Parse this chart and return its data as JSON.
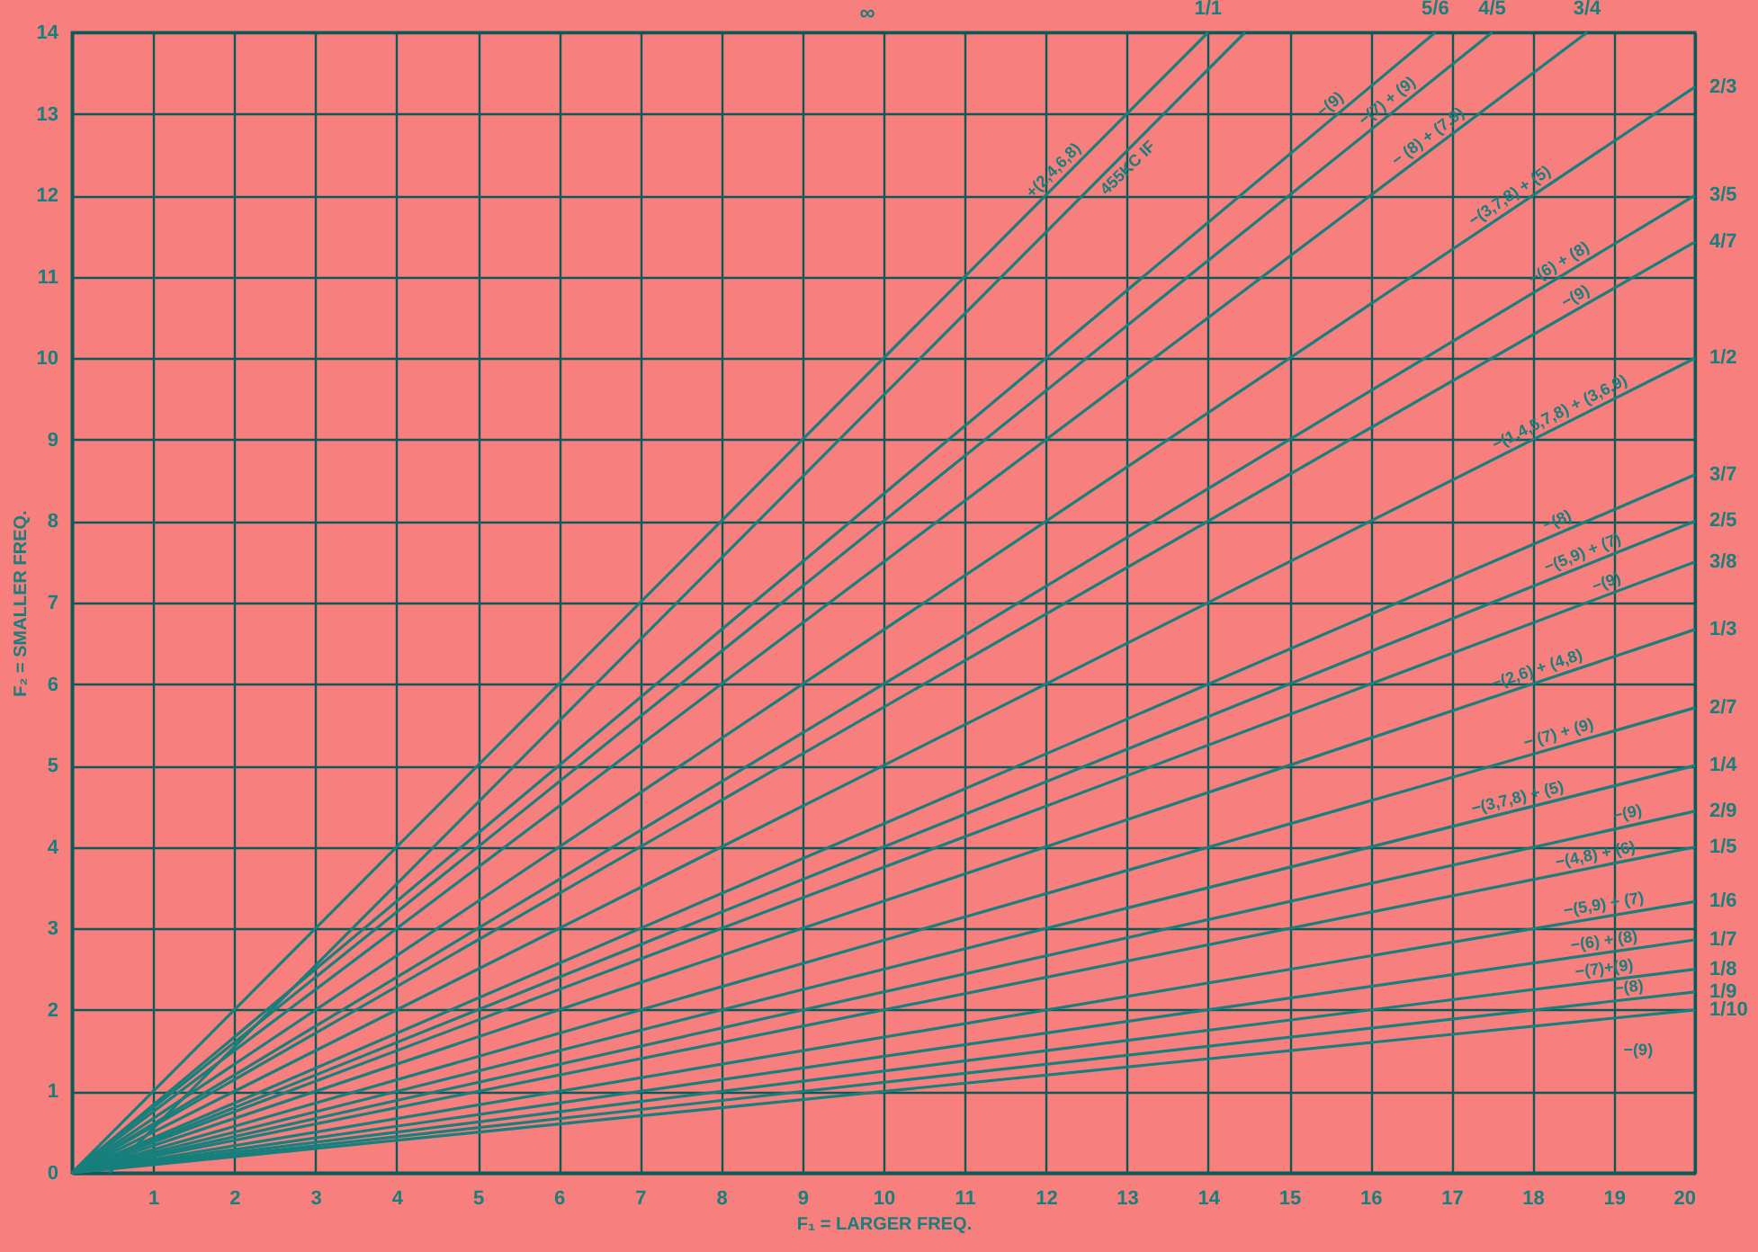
{
  "chart_data": {
    "type": "line",
    "xlabel": "F₁ = LARGER  FREQ.",
    "ylabel": "F₂ = SMALLER FREQ.",
    "xlim": [
      0,
      20
    ],
    "ylim": [
      0,
      14
    ],
    "xticks": [
      1,
      2,
      3,
      4,
      5,
      6,
      7,
      8,
      9,
      10,
      11,
      12,
      13,
      14,
      15,
      16,
      17,
      18,
      19,
      20
    ],
    "yticks": [
      0,
      1,
      2,
      3,
      4,
      5,
      6,
      7,
      8,
      9,
      10,
      11,
      12,
      13,
      14
    ],
    "grid": true,
    "series": [
      {
        "name": "1/1",
        "color": "#177f7c",
        "x": [
          0,
          14
        ],
        "values": [
          0,
          14
        ]
      },
      {
        "color": "#177f7c",
        "x": [
          0.455,
          14.455
        ],
        "values": [
          0,
          14
        ]
      },
      {
        "name": "5/6",
        "color": "#177f7c",
        "x": [
          0,
          16.8
        ],
        "values": [
          0,
          14
        ]
      },
      {
        "name": "4/5",
        "color": "#177f7c",
        "x": [
          0,
          17.5
        ],
        "values": [
          0,
          14
        ]
      },
      {
        "name": "3/4",
        "color": "#177f7c",
        "x": [
          0,
          18.67
        ],
        "values": [
          0,
          14
        ]
      },
      {
        "name": "2/3",
        "color": "#177f7c",
        "x": [
          0,
          20
        ],
        "values": [
          0,
          13.33
        ]
      },
      {
        "name": "3/5",
        "color": "#177f7c",
        "x": [
          0,
          20
        ],
        "values": [
          0,
          12
        ]
      },
      {
        "name": "4/7",
        "color": "#177f7c",
        "x": [
          0,
          20
        ],
        "values": [
          0,
          11.43
        ]
      },
      {
        "name": "1/2",
        "color": "#177f7c",
        "x": [
          0,
          20
        ],
        "values": [
          0,
          10
        ]
      },
      {
        "name": "3/7",
        "color": "#177f7c",
        "x": [
          0,
          20
        ],
        "values": [
          0,
          8.57
        ]
      },
      {
        "name": "2/5",
        "color": "#177f7c",
        "x": [
          0,
          20
        ],
        "values": [
          0,
          8
        ]
      },
      {
        "name": "3/8",
        "color": "#177f7c",
        "x": [
          0,
          20
        ],
        "values": [
          0,
          7.5
        ]
      },
      {
        "name": "1/3",
        "color": "#177f7c",
        "x": [
          0,
          20
        ],
        "values": [
          0,
          6.67
        ]
      },
      {
        "name": "2/7",
        "color": "#177f7c",
        "x": [
          0,
          20
        ],
        "values": [
          0,
          5.71
        ]
      },
      {
        "name": "1/4",
        "color": "#177f7c",
        "x": [
          0,
          20
        ],
        "values": [
          0,
          5
        ]
      },
      {
        "name": "2/9",
        "color": "#177f7c",
        "x": [
          0,
          20
        ],
        "values": [
          0,
          4.44
        ]
      },
      {
        "name": "1/5",
        "color": "#177f7c",
        "x": [
          0,
          20
        ],
        "values": [
          0,
          4
        ]
      },
      {
        "name": "1/6",
        "color": "#177f7c",
        "x": [
          0,
          20
        ],
        "values": [
          0,
          3.33
        ]
      },
      {
        "name": "1/7",
        "color": "#177f7c",
        "x": [
          0,
          20
        ],
        "values": [
          0,
          2.86
        ]
      },
      {
        "name": "1/8",
        "color": "#177f7c",
        "x": [
          0,
          20
        ],
        "values": [
          0,
          2.5
        ]
      },
      {
        "name": "1/9",
        "color": "#177f7c",
        "x": [
          0,
          20
        ],
        "values": [
          0,
          2.22
        ]
      },
      {
        "name": "1/10",
        "color": "#177f7c",
        "x": [
          0,
          20
        ],
        "values": [
          0,
          2
        ]
      }
    ],
    "annotations": [
      "∞",
      {
        "text": "+(2,4,6,8)",
        "x": 12.2,
        "y": 12.2
      },
      {
        "text": "455KC IF",
        "x": 12.9,
        "y": 12.45
      },
      {
        "text": "−(9)",
        "x": 15.6,
        "y": 13
      },
      {
        "text": "−(7) + (9)",
        "x": 16.3,
        "y": 13.04
      },
      {
        "text": "− (8) + (7,9)",
        "x": 16.8,
        "y": 12.6
      },
      {
        "text": "−(3,7,8) + (5)",
        "x": 17.8,
        "y": 11.87
      },
      {
        "text": "−(6) + (8)",
        "x": 18.4,
        "y": 11.04
      },
      {
        "text": "−(9)",
        "x": 18.6,
        "y": 10.63
      },
      {
        "text": "−(1,4,5,7,8)  + (3,6,9)",
        "x": 18.4,
        "y": 9.2
      },
      {
        "text": "−(8)",
        "x": 18.36,
        "y": 7.87
      },
      {
        "text": "−(5,9) + (7)",
        "x": 18.67,
        "y": 7.47
      },
      {
        "text": "−(9)",
        "x": 18.96,
        "y": 7.11
      },
      {
        "text": "−(2,6) + (4,8)",
        "x": 18.1,
        "y": 6.04
      },
      {
        "text": "− (7) + (9)",
        "x": 18.36,
        "y": 5.25
      },
      {
        "text": "−(3,7,8) + (5)",
        "x": 17.85,
        "y": 4.46
      },
      {
        "text": "−(9)",
        "x": 19.2,
        "y": 4.27
      },
      {
        "text": "−(4,8) + (6)",
        "x": 18.8,
        "y": 3.76
      },
      {
        "text": "−(5,9) + (7)",
        "x": 18.9,
        "y": 3.15
      },
      {
        "text": "−(6) + (8)",
        "x": 18.9,
        "y": 2.7
      },
      {
        "text": "−(7)+(9)",
        "x": 18.9,
        "y": 2.36
      },
      {
        "text": "−(8)",
        "x": 19.2,
        "y": 2.13
      },
      "−(9)"
    ]
  }
}
